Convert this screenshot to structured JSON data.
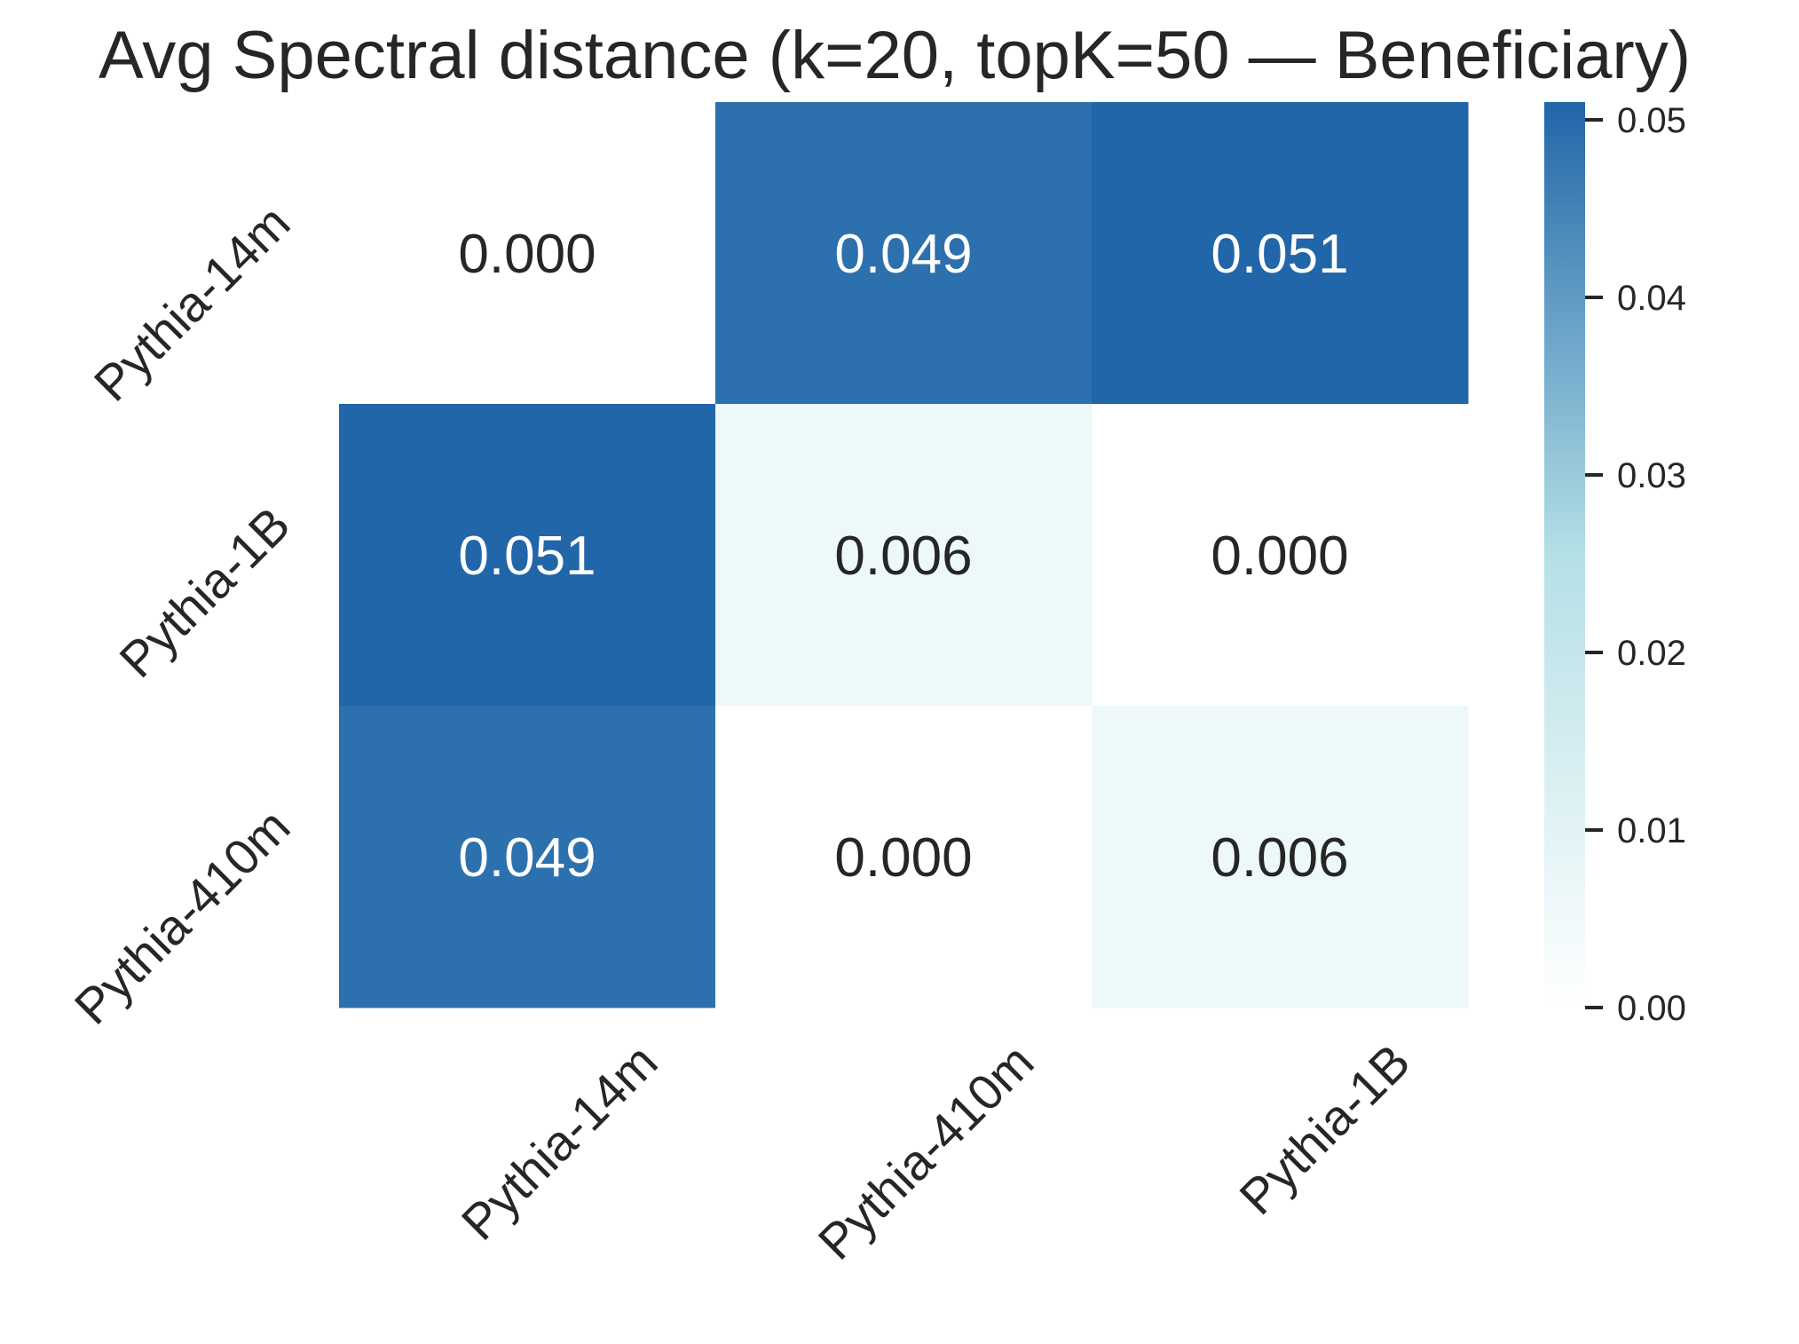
{
  "chart_data": {
    "type": "heatmap",
    "title": "Avg Spectral distance (k=20, topK=50 — Beneficiary)",
    "rows": [
      "Pythia-14m",
      "Pythia-1B",
      "Pythia-410m"
    ],
    "columns": [
      "Pythia-14m",
      "Pythia-410m",
      "Pythia-1B"
    ],
    "values": [
      [
        0.0,
        0.049,
        0.051
      ],
      [
        0.051,
        0.006,
        0.0
      ],
      [
        0.049,
        0.0,
        0.006
      ]
    ],
    "cell_labels": [
      [
        "0.000",
        "0.049",
        "0.051"
      ],
      [
        "0.051",
        "0.006",
        "0.000"
      ],
      [
        "0.049",
        "0.000",
        "0.006"
      ]
    ],
    "colorbar": {
      "range": [
        0.0,
        0.051
      ],
      "ticks": [
        0.0,
        0.01,
        0.02,
        0.03,
        0.04,
        0.05
      ],
      "tick_labels": [
        "0.00",
        "0.01",
        "0.02",
        "0.03",
        "0.04",
        "0.05"
      ],
      "colormap": [
        "#ffffff",
        "#b4e0e6",
        "#2166a9"
      ]
    },
    "xlabel": "",
    "ylabel": "",
    "grid": false
  }
}
